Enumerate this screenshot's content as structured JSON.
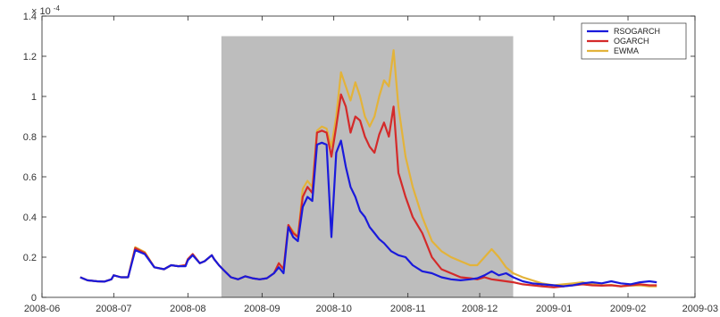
{
  "chart_data": {
    "type": "line",
    "title": "",
    "xlabel": "",
    "ylabel": "",
    "y_exponent_label": "× 10⁻⁴",
    "y_exponent_base": "× 10",
    "y_exponent_power": "-4",
    "ylim": [
      0,
      1.4
    ],
    "xlim": [
      "2008-06-01",
      "2009-03-01"
    ],
    "grid": false,
    "legend_position": "top-right",
    "y_ticks": [
      "0",
      "0.2",
      "0.4",
      "0.6",
      "0.8",
      "1",
      "1.2",
      "1.4"
    ],
    "x_ticks": [
      "2008-06",
      "2008-07",
      "2008-08",
      "2008-09",
      "2008-10",
      "2008-11",
      "2008-12",
      "2009-01",
      "2009-02",
      "2009-03"
    ],
    "shaded_region": {
      "start": "2008-08-15",
      "end": "2008-12-15",
      "color": "#bdbdbd"
    },
    "series": [
      {
        "name": "RSOGARCH",
        "color": "#1a1adb",
        "points": [
          [
            "2008-06-17",
            0.1
          ],
          [
            "2008-06-20",
            0.085
          ],
          [
            "2008-06-24",
            0.08
          ],
          [
            "2008-06-27",
            0.078
          ],
          [
            "2008-06-30",
            0.09
          ],
          [
            "2008-07-01",
            0.11
          ],
          [
            "2008-07-04",
            0.1
          ],
          [
            "2008-07-07",
            0.1
          ],
          [
            "2008-07-10",
            0.235
          ],
          [
            "2008-07-14",
            0.215
          ],
          [
            "2008-07-18",
            0.15
          ],
          [
            "2008-07-22",
            0.14
          ],
          [
            "2008-07-25",
            0.16
          ],
          [
            "2008-07-28",
            0.155
          ],
          [
            "2008-07-31",
            0.155
          ],
          [
            "2008-08-01",
            0.185
          ],
          [
            "2008-08-03",
            0.21
          ],
          [
            "2008-08-06",
            0.17
          ],
          [
            "2008-08-08",
            0.18
          ],
          [
            "2008-08-11",
            0.21
          ],
          [
            "2008-08-12",
            0.19
          ],
          [
            "2008-08-14",
            0.16
          ],
          [
            "2008-08-16",
            0.135
          ],
          [
            "2008-08-19",
            0.1
          ],
          [
            "2008-08-22",
            0.09
          ],
          [
            "2008-08-25",
            0.105
          ],
          [
            "2008-08-28",
            0.095
          ],
          [
            "2008-08-31",
            0.09
          ],
          [
            "2008-09-03",
            0.095
          ],
          [
            "2008-09-06",
            0.12
          ],
          [
            "2008-09-08",
            0.15
          ],
          [
            "2008-09-10",
            0.12
          ],
          [
            "2008-09-12",
            0.35
          ],
          [
            "2008-09-14",
            0.3
          ],
          [
            "2008-09-16",
            0.28
          ],
          [
            "2008-09-18",
            0.45
          ],
          [
            "2008-09-20",
            0.5
          ],
          [
            "2008-09-22",
            0.48
          ],
          [
            "2008-09-24",
            0.76
          ],
          [
            "2008-09-26",
            0.77
          ],
          [
            "2008-09-28",
            0.76
          ],
          [
            "2008-09-30",
            0.3
          ],
          [
            "2008-10-02",
            0.72
          ],
          [
            "2008-10-04",
            0.78
          ],
          [
            "2008-10-06",
            0.65
          ],
          [
            "2008-10-08",
            0.55
          ],
          [
            "2008-10-10",
            0.5
          ],
          [
            "2008-10-12",
            0.43
          ],
          [
            "2008-10-14",
            0.4
          ],
          [
            "2008-10-16",
            0.35
          ],
          [
            "2008-10-18",
            0.32
          ],
          [
            "2008-10-20",
            0.29
          ],
          [
            "2008-10-22",
            0.27
          ],
          [
            "2008-10-25",
            0.23
          ],
          [
            "2008-10-28",
            0.21
          ],
          [
            "2008-10-31",
            0.2
          ],
          [
            "2008-11-03",
            0.16
          ],
          [
            "2008-11-07",
            0.13
          ],
          [
            "2008-11-11",
            0.12
          ],
          [
            "2008-11-15",
            0.1
          ],
          [
            "2008-11-19",
            0.09
          ],
          [
            "2008-11-23",
            0.085
          ],
          [
            "2008-11-27",
            0.09
          ],
          [
            "2008-11-30",
            0.095
          ],
          [
            "2008-12-03",
            0.11
          ],
          [
            "2008-12-06",
            0.13
          ],
          [
            "2008-12-09",
            0.11
          ],
          [
            "2008-12-12",
            0.12
          ],
          [
            "2008-12-15",
            0.1
          ],
          [
            "2008-12-19",
            0.08
          ],
          [
            "2008-12-23",
            0.07
          ],
          [
            "2008-12-27",
            0.065
          ],
          [
            "2009-01-01",
            0.06
          ],
          [
            "2009-01-05",
            0.055
          ],
          [
            "2009-01-09",
            0.06
          ],
          [
            "2009-01-13",
            0.07
          ],
          [
            "2009-01-17",
            0.075
          ],
          [
            "2009-01-21",
            0.07
          ],
          [
            "2009-01-25",
            0.08
          ],
          [
            "2009-01-29",
            0.07
          ],
          [
            "2009-02-02",
            0.065
          ],
          [
            "2009-02-06",
            0.075
          ],
          [
            "2009-02-10",
            0.08
          ],
          [
            "2009-02-13",
            0.075
          ]
        ]
      },
      {
        "name": "OGARCH",
        "color": "#d42a2a",
        "points": [
          [
            "2008-06-17",
            0.1
          ],
          [
            "2008-06-20",
            0.085
          ],
          [
            "2008-06-24",
            0.08
          ],
          [
            "2008-06-27",
            0.078
          ],
          [
            "2008-06-30",
            0.09
          ],
          [
            "2008-07-01",
            0.11
          ],
          [
            "2008-07-04",
            0.1
          ],
          [
            "2008-07-07",
            0.1
          ],
          [
            "2008-07-10",
            0.245
          ],
          [
            "2008-07-14",
            0.22
          ],
          [
            "2008-07-18",
            0.15
          ],
          [
            "2008-07-22",
            0.14
          ],
          [
            "2008-07-25",
            0.16
          ],
          [
            "2008-07-28",
            0.155
          ],
          [
            "2008-07-31",
            0.16
          ],
          [
            "2008-08-01",
            0.19
          ],
          [
            "2008-08-03",
            0.215
          ],
          [
            "2008-08-06",
            0.17
          ],
          [
            "2008-08-08",
            0.18
          ],
          [
            "2008-08-11",
            0.21
          ],
          [
            "2008-08-12",
            0.19
          ],
          [
            "2008-08-14",
            0.16
          ],
          [
            "2008-08-16",
            0.135
          ],
          [
            "2008-08-19",
            0.1
          ],
          [
            "2008-08-22",
            0.09
          ],
          [
            "2008-08-25",
            0.105
          ],
          [
            "2008-08-28",
            0.095
          ],
          [
            "2008-08-31",
            0.09
          ],
          [
            "2008-09-03",
            0.095
          ],
          [
            "2008-09-06",
            0.12
          ],
          [
            "2008-09-08",
            0.17
          ],
          [
            "2008-09-10",
            0.14
          ],
          [
            "2008-09-12",
            0.36
          ],
          [
            "2008-09-14",
            0.32
          ],
          [
            "2008-09-16",
            0.3
          ],
          [
            "2008-09-18",
            0.5
          ],
          [
            "2008-09-20",
            0.55
          ],
          [
            "2008-09-22",
            0.52
          ],
          [
            "2008-09-24",
            0.82
          ],
          [
            "2008-09-26",
            0.83
          ],
          [
            "2008-09-28",
            0.82
          ],
          [
            "2008-09-30",
            0.7
          ],
          [
            "2008-10-02",
            0.85
          ],
          [
            "2008-10-04",
            1.01
          ],
          [
            "2008-10-06",
            0.95
          ],
          [
            "2008-10-08",
            0.82
          ],
          [
            "2008-10-10",
            0.9
          ],
          [
            "2008-10-12",
            0.88
          ],
          [
            "2008-10-14",
            0.8
          ],
          [
            "2008-10-16",
            0.75
          ],
          [
            "2008-10-18",
            0.72
          ],
          [
            "2008-10-20",
            0.81
          ],
          [
            "2008-10-22",
            0.87
          ],
          [
            "2008-10-24",
            0.8
          ],
          [
            "2008-10-26",
            0.95
          ],
          [
            "2008-10-28",
            0.62
          ],
          [
            "2008-10-31",
            0.5
          ],
          [
            "2008-11-03",
            0.4
          ],
          [
            "2008-11-07",
            0.32
          ],
          [
            "2008-11-11",
            0.2
          ],
          [
            "2008-11-15",
            0.14
          ],
          [
            "2008-11-19",
            0.12
          ],
          [
            "2008-11-23",
            0.1
          ],
          [
            "2008-11-27",
            0.095
          ],
          [
            "2008-11-30",
            0.09
          ],
          [
            "2008-12-03",
            0.1
          ],
          [
            "2008-12-06",
            0.09
          ],
          [
            "2008-12-09",
            0.085
          ],
          [
            "2008-12-12",
            0.08
          ],
          [
            "2008-12-15",
            0.075
          ],
          [
            "2008-12-19",
            0.065
          ],
          [
            "2008-12-23",
            0.06
          ],
          [
            "2008-12-27",
            0.055
          ],
          [
            "2009-01-01",
            0.05
          ],
          [
            "2009-01-05",
            0.055
          ],
          [
            "2009-01-09",
            0.06
          ],
          [
            "2009-01-13",
            0.065
          ],
          [
            "2009-01-17",
            0.06
          ],
          [
            "2009-01-21",
            0.058
          ],
          [
            "2009-01-25",
            0.06
          ],
          [
            "2009-01-29",
            0.055
          ],
          [
            "2009-02-02",
            0.06
          ],
          [
            "2009-02-06",
            0.065
          ],
          [
            "2009-02-10",
            0.06
          ],
          [
            "2009-02-13",
            0.06
          ]
        ]
      },
      {
        "name": "EWMA",
        "color": "#e3b33a",
        "points": [
          [
            "2008-06-17",
            0.1
          ],
          [
            "2008-06-20",
            0.085
          ],
          [
            "2008-06-24",
            0.08
          ],
          [
            "2008-06-27",
            0.078
          ],
          [
            "2008-06-30",
            0.09
          ],
          [
            "2008-07-01",
            0.11
          ],
          [
            "2008-07-04",
            0.1
          ],
          [
            "2008-07-07",
            0.1
          ],
          [
            "2008-07-10",
            0.25
          ],
          [
            "2008-07-14",
            0.225
          ],
          [
            "2008-07-18",
            0.15
          ],
          [
            "2008-07-22",
            0.14
          ],
          [
            "2008-07-25",
            0.16
          ],
          [
            "2008-07-28",
            0.155
          ],
          [
            "2008-07-31",
            0.16
          ],
          [
            "2008-08-01",
            0.19
          ],
          [
            "2008-08-03",
            0.215
          ],
          [
            "2008-08-06",
            0.17
          ],
          [
            "2008-08-08",
            0.18
          ],
          [
            "2008-08-11",
            0.21
          ],
          [
            "2008-08-12",
            0.19
          ],
          [
            "2008-08-14",
            0.16
          ],
          [
            "2008-08-16",
            0.135
          ],
          [
            "2008-08-19",
            0.1
          ],
          [
            "2008-08-22",
            0.09
          ],
          [
            "2008-08-25",
            0.105
          ],
          [
            "2008-08-28",
            0.095
          ],
          [
            "2008-08-31",
            0.09
          ],
          [
            "2008-09-03",
            0.095
          ],
          [
            "2008-09-06",
            0.12
          ],
          [
            "2008-09-08",
            0.17
          ],
          [
            "2008-09-10",
            0.14
          ],
          [
            "2008-09-12",
            0.36
          ],
          [
            "2008-09-14",
            0.33
          ],
          [
            "2008-09-16",
            0.3
          ],
          [
            "2008-09-18",
            0.54
          ],
          [
            "2008-09-20",
            0.58
          ],
          [
            "2008-09-22",
            0.55
          ],
          [
            "2008-09-24",
            0.83
          ],
          [
            "2008-09-26",
            0.85
          ],
          [
            "2008-09-28",
            0.84
          ],
          [
            "2008-09-30",
            0.75
          ],
          [
            "2008-10-02",
            0.9
          ],
          [
            "2008-10-04",
            1.12
          ],
          [
            "2008-10-06",
            1.05
          ],
          [
            "2008-10-08",
            0.98
          ],
          [
            "2008-10-10",
            1.07
          ],
          [
            "2008-10-12",
            1.0
          ],
          [
            "2008-10-14",
            0.9
          ],
          [
            "2008-10-16",
            0.85
          ],
          [
            "2008-10-18",
            0.9
          ],
          [
            "2008-10-20",
            1.0
          ],
          [
            "2008-10-22",
            1.08
          ],
          [
            "2008-10-24",
            1.05
          ],
          [
            "2008-10-26",
            1.23
          ],
          [
            "2008-10-28",
            0.95
          ],
          [
            "2008-10-31",
            0.7
          ],
          [
            "2008-11-03",
            0.55
          ],
          [
            "2008-11-07",
            0.4
          ],
          [
            "2008-11-11",
            0.28
          ],
          [
            "2008-11-15",
            0.23
          ],
          [
            "2008-11-19",
            0.2
          ],
          [
            "2008-11-23",
            0.18
          ],
          [
            "2008-11-27",
            0.16
          ],
          [
            "2008-11-30",
            0.16
          ],
          [
            "2008-12-03",
            0.2
          ],
          [
            "2008-12-06",
            0.24
          ],
          [
            "2008-12-09",
            0.2
          ],
          [
            "2008-12-12",
            0.15
          ],
          [
            "2008-12-15",
            0.12
          ],
          [
            "2008-12-19",
            0.1
          ],
          [
            "2008-12-23",
            0.085
          ],
          [
            "2008-12-27",
            0.07
          ],
          [
            "2009-01-01",
            0.06
          ],
          [
            "2009-01-05",
            0.065
          ],
          [
            "2009-01-09",
            0.07
          ],
          [
            "2009-01-13",
            0.075
          ],
          [
            "2009-01-17",
            0.065
          ],
          [
            "2009-01-21",
            0.06
          ],
          [
            "2009-01-25",
            0.062
          ],
          [
            "2009-01-29",
            0.055
          ],
          [
            "2009-02-02",
            0.058
          ],
          [
            "2009-02-06",
            0.06
          ],
          [
            "2009-02-10",
            0.055
          ],
          [
            "2009-02-13",
            0.055
          ]
        ]
      }
    ]
  }
}
